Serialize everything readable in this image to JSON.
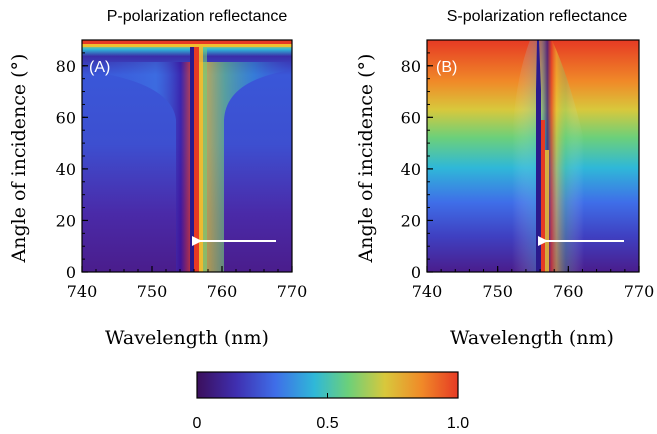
{
  "chart_data": [
    {
      "type": "heatmap",
      "title": "P-polarization reflectance",
      "panel_label": "(A)",
      "xlabel": "Wavelength (nm)",
      "ylabel": "Angle of incidence (°)",
      "xlim": [
        740,
        770
      ],
      "ylim": [
        0,
        90
      ],
      "xticks": [
        "740",
        "750",
        "760",
        "770"
      ],
      "yticks": [
        "0",
        "20",
        "40",
        "60",
        "80"
      ],
      "colormap": "rainbow",
      "resonance_wavelength_nm": 756.5,
      "annotation": {
        "type": "arrow",
        "from": [
          768,
          12
        ],
        "to": [
          756.5,
          12
        ],
        "color": "#ffffff"
      }
    },
    {
      "type": "heatmap",
      "title": "S-polarization reflectance",
      "panel_label": "(B)",
      "xlabel": "Wavelength (nm)",
      "ylabel": "Angle of incidence (°)",
      "xlim": [
        740,
        770
      ],
      "ylim": [
        0,
        90
      ],
      "xticks": [
        "740",
        "750",
        "760",
        "770"
      ],
      "yticks": [
        "0",
        "20",
        "40",
        "60",
        "80"
      ],
      "colormap": "rainbow",
      "resonance_wavelength_nm": 756.2,
      "annotation": {
        "type": "arrow",
        "from": [
          768,
          12
        ],
        "to": [
          756.2,
          12
        ],
        "color": "#ffffff"
      }
    }
  ],
  "colorbar": {
    "min": 0,
    "max": 1.0,
    "ticks": [
      "0",
      "0.5",
      "1.0"
    ],
    "colors": [
      "#3b0f5c",
      "#3f2fb0",
      "#3f6ee8",
      "#2fb8d8",
      "#6cd07a",
      "#d8c83c",
      "#f08a28",
      "#e63a24"
    ]
  }
}
